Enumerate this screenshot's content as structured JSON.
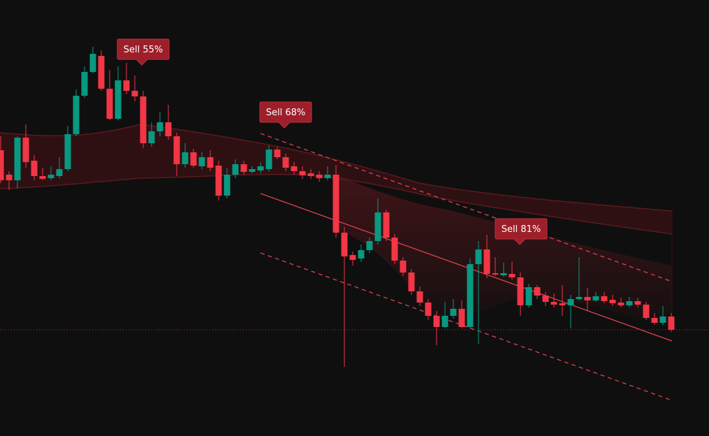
{
  "chart_data": {
    "type": "candlestick",
    "open": [
      409,
      374,
      366,
      427,
      394,
      372,
      369,
      372,
      382,
      432,
      487,
      521,
      544,
      497,
      454,
      509,
      494,
      486,
      419,
      436,
      449,
      429,
      389,
      406,
      386,
      399,
      387,
      344,
      374,
      389,
      378,
      380,
      382,
      410,
      399,
      386,
      379,
      376,
      374,
      369,
      374,
      291,
      259,
      254,
      266,
      279,
      320,
      284,
      251,
      234,
      207,
      191,
      172,
      156,
      172,
      182,
      156,
      246,
      267,
      233,
      230,
      232,
      227,
      187,
      213,
      201,
      192,
      190,
      187,
      196,
      199,
      194,
      200,
      195,
      191,
      187,
      193,
      188,
      169,
      162,
      171
    ],
    "high": [
      429,
      379,
      429,
      446,
      402,
      384,
      386,
      399,
      444,
      496,
      529,
      557,
      552,
      524,
      529,
      534,
      516,
      494,
      449,
      464,
      474,
      434,
      419,
      411,
      406,
      409,
      394,
      384,
      396,
      394,
      386,
      392,
      416,
      414,
      404,
      392,
      386,
      382,
      379,
      386,
      388,
      299,
      264,
      274,
      284,
      340,
      324,
      289,
      256,
      239,
      214,
      196,
      179,
      192,
      196,
      194,
      254,
      279,
      288,
      256,
      248,
      249,
      234,
      218,
      216,
      206,
      204,
      216,
      202,
      256,
      212,
      206,
      206,
      202,
      198,
      199,
      198,
      192,
      176,
      186,
      176
    ],
    "low": [
      362,
      352,
      354,
      384,
      366,
      366,
      366,
      369,
      379,
      429,
      484,
      519,
      494,
      452,
      452,
      489,
      479,
      412,
      414,
      429,
      424,
      372,
      384,
      384,
      382,
      379,
      337,
      340,
      369,
      374,
      376,
      376,
      378,
      396,
      379,
      374,
      368,
      368,
      364,
      366,
      284,
      99,
      244,
      249,
      262,
      274,
      279,
      246,
      229,
      202,
      186,
      166,
      130,
      154,
      168,
      154,
      154,
      132,
      226,
      229,
      228,
      224,
      172,
      184,
      196,
      186,
      184,
      172,
      154,
      194,
      179,
      192,
      190,
      186,
      184,
      184,
      184,
      166,
      159,
      159,
      149
    ],
    "close": [
      366,
      366,
      427,
      392,
      372,
      368,
      374,
      382,
      432,
      487,
      521,
      547,
      497,
      454,
      509,
      494,
      486,
      419,
      436,
      449,
      429,
      389,
      406,
      387,
      399,
      384,
      344,
      374,
      389,
      378,
      382,
      386,
      410,
      399,
      384,
      379,
      373,
      372,
      369,
      374,
      291,
      257,
      252,
      266,
      279,
      320,
      284,
      251,
      234,
      207,
      191,
      172,
      156,
      172,
      182,
      156,
      246,
      267,
      232,
      231,
      233,
      227,
      187,
      213,
      201,
      192,
      188,
      187,
      196,
      199,
      194,
      200,
      193,
      190,
      187,
      193,
      188,
      169,
      162,
      171,
      152
    ],
    "up_color": "#089981",
    "down_color": "#f23645",
    "ylim": [
      0,
      624
    ],
    "price_line": 152,
    "price_line_color": "#f23645",
    "annotations": [
      {
        "text": "Sell 55%"
      },
      {
        "text": "Sell 68%"
      },
      {
        "text": "Sell 81%"
      }
    ],
    "annotation_color": "#9c1f2a"
  }
}
